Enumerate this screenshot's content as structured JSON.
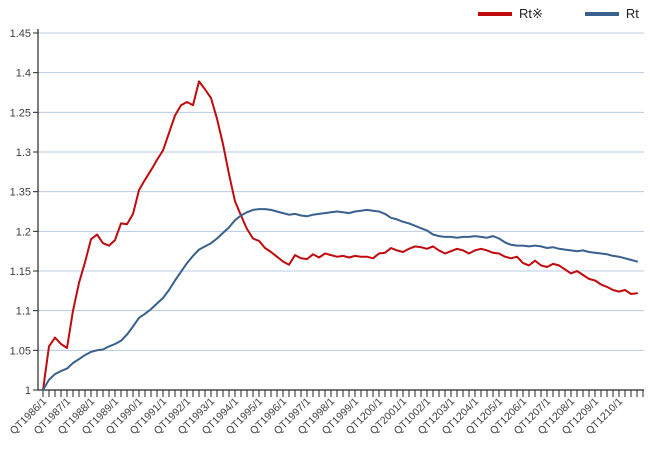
{
  "legend": {
    "items": [
      {
        "label": "Rt※",
        "color": "#c00a0e"
      },
      {
        "label": "Rt",
        "color": "#38618e"
      }
    ]
  },
  "chart_data": {
    "type": "line",
    "title": "",
    "xlabel": "",
    "ylabel": "",
    "grid": true,
    "legend_position": "top-right",
    "y_value_range": [
      1.0,
      1.45
    ],
    "y_tick_labels_top_to_bottom": [
      "1.45",
      "1.4",
      "1.25",
      "1.3",
      "1.35",
      "1.2",
      "1.15",
      "1.1",
      "1.05",
      "1"
    ],
    "x_tick_labels": [
      "QT1986/1",
      "QT1987/1",
      "QT1988/1",
      "QT1989/1",
      "QT1990/1",
      "QT1991/1",
      "QT1992/1",
      "QT1993/1",
      "QT1994/1",
      "QT1995/1",
      "QT1996/1",
      "QT1997/1",
      "QT1998/1",
      "QT1999/1",
      "QT1200/1",
      "QT2001/1",
      "QT1002/1",
      "QT1203/1",
      "QT1204/1",
      "QT1205/1",
      "QT1206/1",
      "QT1207/1",
      "QT1208/1",
      "QT1209/1",
      "QT1210/1"
    ],
    "quarters_per_year": 4,
    "colors": {
      "grid": "#b8cce4",
      "axis": "#262626",
      "tick": "#262626"
    },
    "series": [
      {
        "name": "Rt※",
        "color": "#c00a0e",
        "values": [
          1.0,
          1.055,
          1.066,
          1.058,
          1.053,
          1.1,
          1.135,
          1.161,
          1.19,
          1.196,
          1.185,
          1.182,
          1.189,
          1.21,
          1.209,
          1.222,
          1.252,
          1.265,
          1.277,
          1.29,
          1.302,
          1.324,
          1.346,
          1.359,
          1.363,
          1.359,
          1.389,
          1.379,
          1.368,
          1.342,
          1.31,
          1.272,
          1.238,
          1.22,
          1.203,
          1.191,
          1.188,
          1.179,
          1.174,
          1.168,
          1.162,
          1.158,
          1.17,
          1.166,
          1.165,
          1.171,
          1.167,
          1.172,
          1.17,
          1.168,
          1.169,
          1.167,
          1.169,
          1.168,
          1.168,
          1.166,
          1.172,
          1.173,
          1.179,
          1.176,
          1.174,
          1.178,
          1.181,
          1.18,
          1.178,
          1.181,
          1.176,
          1.172,
          1.175,
          1.178,
          1.176,
          1.172,
          1.176,
          1.178,
          1.176,
          1.173,
          1.172,
          1.168,
          1.166,
          1.168,
          1.16,
          1.157,
          1.163,
          1.157,
          1.155,
          1.159,
          1.157,
          1.152,
          1.147,
          1.15,
          1.145,
          1.14,
          1.138,
          1.133,
          1.13,
          1.126,
          1.124,
          1.126,
          1.121,
          1.122
        ]
      },
      {
        "name": "Rt",
        "color": "#38618e",
        "values": [
          1.0,
          1.013,
          1.02,
          1.024,
          1.027,
          1.034,
          1.039,
          1.044,
          1.048,
          1.05,
          1.051,
          1.055,
          1.058,
          1.062,
          1.07,
          1.08,
          1.091,
          1.096,
          1.102,
          1.109,
          1.116,
          1.126,
          1.138,
          1.149,
          1.16,
          1.169,
          1.177,
          1.181,
          1.185,
          1.191,
          1.198,
          1.205,
          1.214,
          1.22,
          1.224,
          1.227,
          1.228,
          1.228,
          1.227,
          1.225,
          1.223,
          1.221,
          1.222,
          1.22,
          1.219,
          1.221,
          1.222,
          1.223,
          1.224,
          1.225,
          1.224,
          1.223,
          1.225,
          1.226,
          1.227,
          1.226,
          1.225,
          1.222,
          1.217,
          1.215,
          1.212,
          1.21,
          1.207,
          1.204,
          1.201,
          1.196,
          1.194,
          1.193,
          1.193,
          1.192,
          1.193,
          1.193,
          1.194,
          1.193,
          1.192,
          1.194,
          1.191,
          1.186,
          1.183,
          1.182,
          1.182,
          1.181,
          1.182,
          1.181,
          1.179,
          1.18,
          1.178,
          1.177,
          1.176,
          1.175,
          1.176,
          1.174,
          1.173,
          1.172,
          1.171,
          1.169,
          1.168,
          1.166,
          1.164,
          1.162
        ]
      }
    ]
  }
}
